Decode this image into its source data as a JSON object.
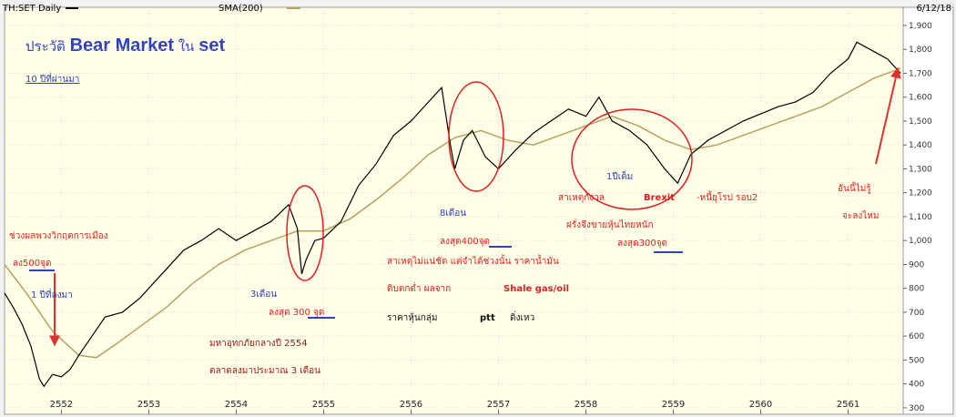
{
  "chart_data": {
    "type": "line",
    "header_left": "TH:SET Daily",
    "header_date": "6/12/18",
    "title_parts": [
      "ประวัติ ",
      "Bear Market",
      " ใน ",
      "set"
    ],
    "subtitle": "10 ปีที่ผ่านมา",
    "xlim": [
      2551.35,
      2561.63
    ],
    "xticks": [
      2552,
      2553,
      2554,
      2555,
      2556,
      2557,
      2558,
      2559,
      2560,
      2561
    ],
    "ylim": [
      273,
      1976
    ],
    "yticks": [
      300,
      400,
      500,
      600,
      700,
      800,
      900,
      {
        "value": 1000,
        "label": "1,000"
      },
      {
        "value": 1100,
        "label": "1,100"
      },
      {
        "value": 1200,
        "label": "1,200"
      },
      {
        "value": 1300,
        "label": "1,300"
      },
      {
        "value": 1400,
        "label": "1,400"
      },
      {
        "value": 1500,
        "label": "1,500"
      },
      {
        "value": 1600,
        "label": "1,600"
      },
      {
        "value": 1700,
        "label": "1,700"
      },
      {
        "value": 1800,
        "label": "1,800"
      },
      {
        "value": 1900,
        "label": "1,900"
      }
    ],
    "grid": true,
    "series": [
      {
        "name": "TH:SET Daily",
        "color": "#000000",
        "x": [
          2551.35,
          2551.45,
          2551.55,
          2551.65,
          2551.75,
          2551.8,
          2551.9,
          2552.0,
          2552.1,
          2552.2,
          2552.35,
          2552.5,
          2552.7,
          2552.9,
          2553.0,
          2553.2,
          2553.4,
          2553.6,
          2553.8,
          2554.0,
          2554.2,
          2554.4,
          2554.6,
          2554.7,
          2554.75,
          2554.8,
          2554.9,
          2555.0,
          2555.2,
          2555.4,
          2555.6,
          2555.8,
          2556.0,
          2556.2,
          2556.35,
          2556.45,
          2556.5,
          2556.6,
          2556.7,
          2556.85,
          2557.0,
          2557.2,
          2557.4,
          2557.6,
          2557.8,
          2558.0,
          2558.15,
          2558.3,
          2558.5,
          2558.7,
          2558.9,
          2559.05,
          2559.2,
          2559.4,
          2559.6,
          2559.8,
          2560.0,
          2560.2,
          2560.4,
          2560.6,
          2560.8,
          2561.0,
          2561.1,
          2561.3,
          2561.45,
          2561.6
        ],
        "values": [
          780,
          720,
          650,
          560,
          420,
          390,
          440,
          430,
          460,
          520,
          600,
          680,
          700,
          760,
          800,
          880,
          960,
          1000,
          1050,
          1000,
          1040,
          1080,
          1150,
          1050,
          860,
          920,
          1000,
          1010,
          1080,
          1230,
          1320,
          1440,
          1500,
          1580,
          1640,
          1400,
          1300,
          1420,
          1460,
          1350,
          1300,
          1380,
          1450,
          1500,
          1550,
          1520,
          1600,
          1500,
          1460,
          1400,
          1300,
          1240,
          1360,
          1420,
          1460,
          1500,
          1530,
          1560,
          1580,
          1620,
          1700,
          1760,
          1830,
          1790,
          1760,
          1700
        ]
      },
      {
        "name": "SMA(200)",
        "color": "#b8a060",
        "x": [
          2551.35,
          2551.6,
          2551.9,
          2552.2,
          2552.4,
          2552.6,
          2552.9,
          2553.2,
          2553.5,
          2553.8,
          2554.1,
          2554.4,
          2554.7,
          2555.0,
          2555.3,
          2555.6,
          2555.9,
          2556.2,
          2556.5,
          2556.8,
          2557.1,
          2557.4,
          2557.7,
          2558.0,
          2558.3,
          2558.6,
          2558.9,
          2559.2,
          2559.5,
          2559.8,
          2560.1,
          2560.4,
          2560.7,
          2561.0,
          2561.3,
          2561.6
        ],
        "values": [
          900,
          780,
          620,
          520,
          510,
          560,
          640,
          720,
          820,
          900,
          960,
          1000,
          1040,
          1040,
          1090,
          1170,
          1260,
          1360,
          1430,
          1460,
          1420,
          1400,
          1440,
          1480,
          1520,
          1480,
          1420,
          1380,
          1400,
          1440,
          1480,
          1520,
          1560,
          1620,
          1680,
          1720
        ]
      }
    ],
    "annotations": [
      "ช่วงผลพวงวิกฤตการเมือง",
      "ลง500จุด",
      "1 ปีที่ลงมา",
      "3เดือน",
      "ลงสุด 300 จุด",
      "มหาอุทกภัยกลางปี 2554",
      "ตลาดลงมาประมาณ 3 เดือน",
      "8เดือน",
      "ลงสุด400จุด",
      "สาเหตุไม่แน่ชัด แต่จำได้ช่วงนั้น ราคาน้ำมัน",
      "ดิบตกต่ำ ผลจาก ",
      "Shale gas/oil",
      "ราคาหุ้นกลุ่ม ",
      "ptt",
      " ดิ่งเหว",
      "1ปีเต็ม",
      "สาเหตุกังวล ",
      "Brexit",
      "-หนี้ยุโรป รอบ2",
      "ฝรั่งจึงขายหุ้นไทยหนัก",
      "ลงสุด300จุด",
      "อันนี้ไม่รู้",
      "จะลงไหม"
    ]
  }
}
